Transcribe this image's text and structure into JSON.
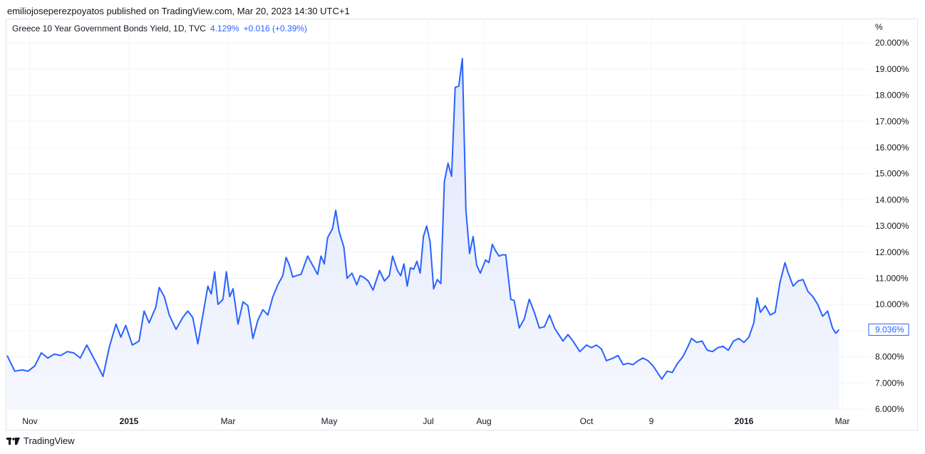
{
  "header": {
    "published": "emiliojoseperezpoyatos published on TradingView.com, Mar 20, 2023 14:30 UTC+1"
  },
  "legend": {
    "symbol": "Greece 10 Year Government Bonds Yield, 1D, TVC",
    "last_value": "4.129%",
    "change": "+0.016 (+0.39%)"
  },
  "footer": {
    "brand": "TradingView",
    "logo_icon": "tradingview-logo-icon"
  },
  "colors": {
    "line": "#2962ff",
    "area_top": "#dfe7fb",
    "area_bottom": "#f5f7fe",
    "grid": "#f0f3fa",
    "text": "#131722"
  },
  "chart_data": {
    "type": "area",
    "title": "Greece 10 Year Government Bonds Yield, 1D, TVC",
    "ylabel": "%",
    "ylim": [
      6,
      20
    ],
    "y_ticks": [
      "6.000%",
      "7.000%",
      "8.000%",
      "9.000%",
      "10.000%",
      "11.000%",
      "12.000%",
      "13.000%",
      "14.000%",
      "15.000%",
      "16.000%",
      "17.000%",
      "18.000%",
      "19.000%",
      "20.000%"
    ],
    "x_ticks": [
      {
        "label": "Nov",
        "date": "2014-11-01",
        "bold": false
      },
      {
        "label": "2015",
        "date": "2015-01-01",
        "bold": true
      },
      {
        "label": "Mar",
        "date": "2015-03-01",
        "bold": false
      },
      {
        "label": "May",
        "date": "2015-05-01",
        "bold": false
      },
      {
        "label": "Jul",
        "date": "2015-07-01",
        "bold": false
      },
      {
        "label": "Aug",
        "date": "2015-08-01",
        "bold": false
      },
      {
        "label": "Oct",
        "date": "2015-10-01",
        "bold": false
      },
      {
        "label": "9",
        "date": "2015-11-09",
        "bold": false
      },
      {
        "label": "2016",
        "date": "2016-01-01",
        "bold": true
      },
      {
        "label": "Mar",
        "date": "2016-03-01",
        "bold": false
      }
    ],
    "xlim": [
      "2014-10-20",
      "2016-03-15"
    ],
    "last_label": "9.036%",
    "grid": true,
    "series": [
      {
        "name": "Greece 10 Year Government Bonds Yield",
        "points": [
          [
            "2014-10-20",
            8.05
          ],
          [
            "2014-10-24",
            7.45
          ],
          [
            "2014-10-28",
            7.5
          ],
          [
            "2014-10-31",
            7.45
          ],
          [
            "2014-11-04",
            7.65
          ],
          [
            "2014-11-08",
            8.15
          ],
          [
            "2014-11-12",
            7.95
          ],
          [
            "2014-11-16",
            8.1
          ],
          [
            "2014-11-20",
            8.05
          ],
          [
            "2014-11-24",
            8.2
          ],
          [
            "2014-11-28",
            8.15
          ],
          [
            "2014-12-02",
            7.95
          ],
          [
            "2014-12-06",
            8.45
          ],
          [
            "2014-12-12",
            7.75
          ],
          [
            "2014-12-16",
            7.25
          ],
          [
            "2014-12-20",
            8.4
          ],
          [
            "2014-12-24",
            9.25
          ],
          [
            "2014-12-27",
            8.75
          ],
          [
            "2014-12-30",
            9.2
          ],
          [
            "2015-01-03",
            8.45
          ],
          [
            "2015-01-07",
            8.6
          ],
          [
            "2015-01-10",
            9.75
          ],
          [
            "2015-01-13",
            9.3
          ],
          [
            "2015-01-17",
            9.9
          ],
          [
            "2015-01-19",
            10.65
          ],
          [
            "2015-01-22",
            10.3
          ],
          [
            "2015-01-25",
            9.6
          ],
          [
            "2015-01-29",
            9.05
          ],
          [
            "2015-02-02",
            9.5
          ],
          [
            "2015-02-05",
            9.75
          ],
          [
            "2015-02-08",
            9.5
          ],
          [
            "2015-02-11",
            8.5
          ],
          [
            "2015-02-14",
            9.6
          ],
          [
            "2015-02-17",
            10.7
          ],
          [
            "2015-02-19",
            10.4
          ],
          [
            "2015-02-21",
            11.25
          ],
          [
            "2015-02-23",
            10.0
          ],
          [
            "2015-02-26",
            10.2
          ],
          [
            "2015-02-28",
            11.25
          ],
          [
            "2015-03-02",
            10.3
          ],
          [
            "2015-03-04",
            10.6
          ],
          [
            "2015-03-07",
            9.25
          ],
          [
            "2015-03-10",
            10.1
          ],
          [
            "2015-03-13",
            9.95
          ],
          [
            "2015-03-16",
            8.7
          ],
          [
            "2015-03-19",
            9.4
          ],
          [
            "2015-03-22",
            9.8
          ],
          [
            "2015-03-25",
            9.6
          ],
          [
            "2015-03-28",
            10.3
          ],
          [
            "2015-03-31",
            10.75
          ],
          [
            "2015-04-03",
            11.1
          ],
          [
            "2015-04-05",
            11.8
          ],
          [
            "2015-04-07",
            11.5
          ],
          [
            "2015-04-09",
            11.05
          ],
          [
            "2015-04-11",
            11.1
          ],
          [
            "2015-04-14",
            11.15
          ],
          [
            "2015-04-18",
            11.85
          ],
          [
            "2015-04-21",
            11.5
          ],
          [
            "2015-04-24",
            11.15
          ],
          [
            "2015-04-26",
            11.85
          ],
          [
            "2015-04-28",
            11.55
          ],
          [
            "2015-04-30",
            12.55
          ],
          [
            "2015-05-03",
            12.9
          ],
          [
            "2015-05-05",
            13.6
          ],
          [
            "2015-05-07",
            12.8
          ],
          [
            "2015-05-10",
            12.2
          ],
          [
            "2015-05-12",
            11.0
          ],
          [
            "2015-05-15",
            11.2
          ],
          [
            "2015-05-18",
            10.75
          ],
          [
            "2015-05-20",
            11.1
          ],
          [
            "2015-05-22",
            11.05
          ],
          [
            "2015-05-25",
            10.9
          ],
          [
            "2015-05-28",
            10.55
          ],
          [
            "2015-06-01",
            11.3
          ],
          [
            "2015-06-04",
            10.9
          ],
          [
            "2015-06-07",
            11.1
          ],
          [
            "2015-06-09",
            11.85
          ],
          [
            "2015-06-12",
            11.3
          ],
          [
            "2015-06-14",
            11.1
          ],
          [
            "2015-06-16",
            11.55
          ],
          [
            "2015-06-18",
            10.7
          ],
          [
            "2015-06-20",
            11.4
          ],
          [
            "2015-06-22",
            11.35
          ],
          [
            "2015-06-24",
            11.65
          ],
          [
            "2015-06-26",
            11.2
          ],
          [
            "2015-06-28",
            12.6
          ],
          [
            "2015-06-30",
            13.0
          ],
          [
            "2015-07-02",
            12.4
          ],
          [
            "2015-07-04",
            10.6
          ],
          [
            "2015-07-06",
            10.95
          ],
          [
            "2015-07-08",
            10.8
          ],
          [
            "2015-07-10",
            14.7
          ],
          [
            "2015-07-12",
            15.4
          ],
          [
            "2015-07-14",
            14.9
          ],
          [
            "2015-07-16",
            18.3
          ],
          [
            "2015-07-18",
            18.35
          ],
          [
            "2015-07-20",
            19.4
          ],
          [
            "2015-07-22",
            13.6
          ],
          [
            "2015-07-24",
            11.95
          ],
          [
            "2015-07-26",
            12.6
          ],
          [
            "2015-07-28",
            11.5
          ],
          [
            "2015-07-30",
            11.2
          ],
          [
            "2015-08-02",
            11.7
          ],
          [
            "2015-08-04",
            11.6
          ],
          [
            "2015-08-06",
            12.3
          ],
          [
            "2015-08-08",
            12.05
          ],
          [
            "2015-08-10",
            11.85
          ],
          [
            "2015-08-12",
            11.9
          ],
          [
            "2015-08-14",
            11.9
          ],
          [
            "2015-08-17",
            10.2
          ],
          [
            "2015-08-19",
            10.15
          ],
          [
            "2015-08-22",
            9.1
          ],
          [
            "2015-08-25",
            9.45
          ],
          [
            "2015-08-28",
            10.2
          ],
          [
            "2015-08-31",
            9.7
          ],
          [
            "2015-09-03",
            9.1
          ],
          [
            "2015-09-06",
            9.15
          ],
          [
            "2015-09-09",
            9.6
          ],
          [
            "2015-09-12",
            9.1
          ],
          [
            "2015-09-15",
            8.8
          ],
          [
            "2015-09-17",
            8.6
          ],
          [
            "2015-09-20",
            8.85
          ],
          [
            "2015-09-23",
            8.6
          ],
          [
            "2015-09-27",
            8.2
          ],
          [
            "2015-10-01",
            8.45
          ],
          [
            "2015-10-04",
            8.35
          ],
          [
            "2015-10-07",
            8.45
          ],
          [
            "2015-10-10",
            8.3
          ],
          [
            "2015-10-13",
            7.85
          ],
          [
            "2015-10-17",
            7.95
          ],
          [
            "2015-10-20",
            8.05
          ],
          [
            "2015-10-23",
            7.7
          ],
          [
            "2015-10-26",
            7.75
          ],
          [
            "2015-10-29",
            7.7
          ],
          [
            "2015-11-01",
            7.85
          ],
          [
            "2015-11-04",
            7.95
          ],
          [
            "2015-11-07",
            7.85
          ],
          [
            "2015-11-10",
            7.65
          ],
          [
            "2015-11-13",
            7.35
          ],
          [
            "2015-11-15",
            7.15
          ],
          [
            "2015-11-18",
            7.45
          ],
          [
            "2015-11-21",
            7.4
          ],
          [
            "2015-11-24",
            7.75
          ],
          [
            "2015-11-27",
            8.0
          ],
          [
            "2015-11-30",
            8.4
          ],
          [
            "2015-12-02",
            8.7
          ],
          [
            "2015-12-05",
            8.55
          ],
          [
            "2015-12-08",
            8.6
          ],
          [
            "2015-12-11",
            8.25
          ],
          [
            "2015-12-14",
            8.2
          ],
          [
            "2015-12-17",
            8.35
          ],
          [
            "2015-12-20",
            8.4
          ],
          [
            "2015-12-23",
            8.25
          ],
          [
            "2015-12-26",
            8.6
          ],
          [
            "2015-12-29",
            8.7
          ],
          [
            "2016-01-01",
            8.55
          ],
          [
            "2016-01-04",
            8.75
          ],
          [
            "2016-01-07",
            9.3
          ],
          [
            "2016-01-09",
            10.25
          ],
          [
            "2016-01-11",
            9.7
          ],
          [
            "2016-01-14",
            9.95
          ],
          [
            "2016-01-17",
            9.6
          ],
          [
            "2016-01-20",
            9.7
          ],
          [
            "2016-01-23",
            10.85
          ],
          [
            "2016-01-26",
            11.6
          ],
          [
            "2016-01-28",
            11.2
          ],
          [
            "2016-01-31",
            10.7
          ],
          [
            "2016-02-03",
            10.9
          ],
          [
            "2016-02-06",
            10.95
          ],
          [
            "2016-02-09",
            10.5
          ],
          [
            "2016-02-12",
            10.3
          ],
          [
            "2016-02-15",
            10.0
          ],
          [
            "2016-02-18",
            9.55
          ],
          [
            "2016-02-21",
            9.75
          ],
          [
            "2016-02-24",
            9.1
          ],
          [
            "2016-02-26",
            8.9
          ],
          [
            "2016-02-28",
            9.036
          ]
        ]
      }
    ]
  }
}
